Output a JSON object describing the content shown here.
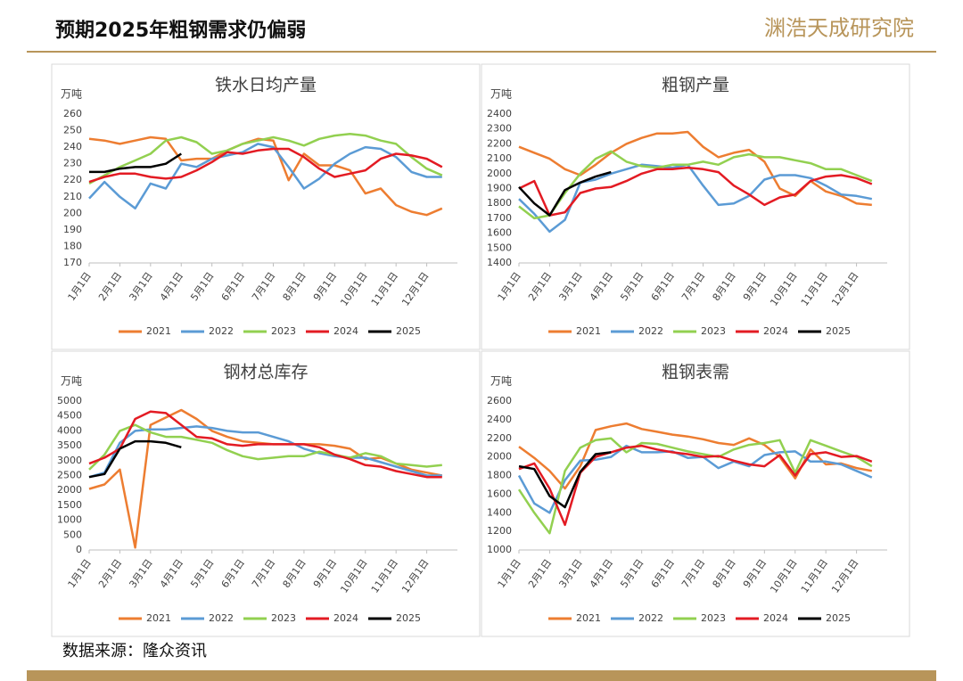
{
  "header": {
    "title": "预期2025年粗钢需求仍偏弱",
    "logo": "渊浩天成研究院"
  },
  "footer": {
    "source": "数据来源：隆众资讯"
  },
  "chart_data": [
    {
      "type": "line",
      "title": "铁水日均产量",
      "y_label": "万吨",
      "categories": [
        "1月1日",
        null,
        "2月1日",
        null,
        "3月1日",
        null,
        "4月1日",
        null,
        "5月1日",
        null,
        "6月1日",
        null,
        "7月1日",
        null,
        "8月1日",
        null,
        "9月1日",
        null,
        "10月1日",
        null,
        "11月1日",
        null,
        "12月1日",
        null
      ],
      "ylim": [
        170,
        260
      ],
      "yticks": [
        170,
        180,
        190,
        200,
        210,
        220,
        230,
        240,
        250,
        260
      ],
      "grid": false,
      "series": [
        {
          "name": "2021",
          "color": "#ed7d31",
          "values": [
            245,
            244,
            242,
            244,
            246,
            245,
            232,
            233,
            233,
            238,
            242,
            245,
            244,
            220,
            236,
            229,
            229,
            226,
            212,
            215,
            205,
            201,
            199,
            203
          ]
        },
        {
          "name": "2022",
          "color": "#5b9bd5",
          "values": [
            209,
            219,
            210,
            203,
            218,
            215,
            230,
            228,
            233,
            235,
            237,
            242,
            240,
            228,
            215,
            221,
            230,
            236,
            240,
            239,
            234,
            225,
            222,
            222
          ]
        },
        {
          "name": "2023",
          "color": "#92d050",
          "values": [
            218,
            223,
            228,
            232,
            236,
            244,
            246,
            243,
            236,
            238,
            242,
            244,
            246,
            244,
            241,
            245,
            247,
            248,
            247,
            244,
            242,
            234,
            227,
            223
          ]
        },
        {
          "name": "2024",
          "color": "#e31b23",
          "values": [
            219,
            222,
            224,
            224,
            222,
            221,
            222,
            226,
            231,
            237,
            236,
            238,
            239,
            239,
            234,
            227,
            222,
            224,
            226,
            233,
            236,
            235,
            233,
            228
          ]
        },
        {
          "name": "2025",
          "color": "#000000",
          "values": [
            225,
            225,
            227,
            228,
            228,
            230,
            236,
            null,
            null,
            null,
            null,
            null,
            null,
            null,
            null,
            null,
            null,
            null,
            null,
            null,
            null,
            null,
            null,
            null
          ]
        }
      ]
    },
    {
      "type": "line",
      "title": "粗钢产量",
      "y_label": "万吨",
      "categories": [
        "1月1日",
        null,
        "2月1日",
        null,
        "3月1日",
        null,
        "4月1日",
        null,
        "5月1日",
        null,
        "6月1日",
        null,
        "7月1日",
        null,
        "8月1日",
        null,
        "9月1日",
        null,
        "10月1日",
        null,
        "11月1日",
        null,
        "12月1日",
        null
      ],
      "ylim": [
        1400,
        2400
      ],
      "yticks": [
        1400,
        1500,
        1600,
        1700,
        1800,
        1900,
        2000,
        2100,
        2200,
        2300,
        2400
      ],
      "grid": false,
      "series": [
        {
          "name": "2021",
          "color": "#ed7d31",
          "values": [
            2180,
            2140,
            2100,
            2030,
            1990,
            2060,
            2140,
            2200,
            2240,
            2270,
            2270,
            2280,
            2180,
            2110,
            2140,
            2160,
            2080,
            1900,
            1850,
            1950,
            1880,
            1850,
            1800,
            1790
          ]
        },
        {
          "name": "2022",
          "color": "#5b9bd5",
          "values": [
            1830,
            1730,
            1610,
            1690,
            1940,
            1960,
            2000,
            2030,
            2060,
            2050,
            2040,
            2060,
            1920,
            1790,
            1800,
            1850,
            1960,
            1990,
            1990,
            1970,
            1920,
            1860,
            1850,
            1830
          ]
        },
        {
          "name": "2023",
          "color": "#92d050",
          "values": [
            1780,
            1700,
            1720,
            1870,
            2000,
            2100,
            2150,
            2080,
            2050,
            2040,
            2060,
            2060,
            2080,
            2060,
            2110,
            2130,
            2110,
            2110,
            2090,
            2070,
            2030,
            2030,
            1990,
            1950
          ]
        },
        {
          "name": "2024",
          "color": "#e31b23",
          "values": [
            1900,
            1950,
            1720,
            1740,
            1870,
            1900,
            1910,
            1950,
            2000,
            2030,
            2030,
            2040,
            2030,
            2010,
            1920,
            1860,
            1790,
            1840,
            1860,
            1950,
            1980,
            1990,
            1970,
            1930
          ]
        },
        {
          "name": "2025",
          "color": "#000000",
          "values": [
            1910,
            1800,
            1720,
            1890,
            1940,
            1980,
            2010,
            null,
            null,
            null,
            null,
            null,
            null,
            null,
            null,
            null,
            null,
            null,
            null,
            null,
            null,
            null,
            null,
            null
          ]
        }
      ]
    },
    {
      "type": "line",
      "title": "钢材总库存",
      "y_label": "万吨",
      "categories": [
        "1月1日",
        null,
        "2月1日",
        null,
        "3月1日",
        null,
        "4月1日",
        null,
        "5月1日",
        null,
        "6月1日",
        null,
        "7月1日",
        null,
        "8月1日",
        null,
        "9月1日",
        null,
        "10月1日",
        null,
        "11月1日",
        null,
        "12月1日",
        null
      ],
      "ylim": [
        0,
        5000
      ],
      "yticks": [
        0,
        500,
        1000,
        1500,
        2000,
        2500,
        3000,
        3500,
        4000,
        4500,
        5000
      ],
      "grid": false,
      "series": [
        {
          "name": "2021",
          "color": "#ed7d31",
          "values": [
            2050,
            2200,
            2700,
            80,
            4200,
            4450,
            4700,
            4400,
            4000,
            3800,
            3650,
            3600,
            3550,
            3550,
            3550,
            3550,
            3500,
            3400,
            3050,
            3100,
            2900,
            2700,
            2600,
            2500
          ]
        },
        {
          "name": "2022",
          "color": "#5b9bd5",
          "values": [
            2450,
            2600,
            3600,
            4000,
            4050,
            4050,
            4100,
            4150,
            4100,
            4000,
            3950,
            3950,
            3800,
            3650,
            3400,
            3250,
            3150,
            3100,
            3100,
            2950,
            2800,
            2650,
            2500,
            2500
          ]
        },
        {
          "name": "2023",
          "color": "#92d050",
          "values": [
            2700,
            3200,
            4000,
            4200,
            3950,
            3800,
            3800,
            3700,
            3600,
            3350,
            3150,
            3050,
            3100,
            3150,
            3150,
            3300,
            3200,
            3100,
            3250,
            3150,
            2900,
            2850,
            2800,
            2850
          ]
        },
        {
          "name": "2024",
          "color": "#e31b23",
          "values": [
            2900,
            3100,
            3400,
            4400,
            4650,
            4600,
            4200,
            3800,
            3750,
            3550,
            3500,
            3550,
            3550,
            3550,
            3550,
            3450,
            3200,
            3050,
            2850,
            2800,
            2650,
            2550,
            2450,
            2450
          ]
        },
        {
          "name": "2025",
          "color": "#000000",
          "values": [
            2450,
            2550,
            3400,
            3650,
            3650,
            3600,
            3450,
            null,
            null,
            null,
            null,
            null,
            null,
            null,
            null,
            null,
            null,
            null,
            null,
            null,
            null,
            null,
            null,
            null
          ]
        }
      ]
    },
    {
      "type": "line",
      "title": "粗钢表需",
      "y_label": "万吨",
      "categories": [
        "1月1日",
        null,
        "2月1日",
        null,
        "3月1日",
        null,
        "4月1日",
        null,
        "5月1日",
        null,
        "6月1日",
        null,
        "7月1日",
        null,
        "8月1日",
        null,
        "9月1日",
        null,
        "10月1日",
        null,
        "11月1日",
        null,
        "12月1日",
        null
      ],
      "ylim": [
        1000,
        2600
      ],
      "yticks": [
        1000,
        1200,
        1400,
        1600,
        1800,
        2000,
        2200,
        2400,
        2600
      ],
      "grid": false,
      "series": [
        {
          "name": "2021",
          "color": "#ed7d31",
          "values": [
            2110,
            1990,
            1850,
            1660,
            1900,
            2290,
            2330,
            2360,
            2300,
            2270,
            2240,
            2220,
            2190,
            2150,
            2130,
            2200,
            2130,
            2000,
            1770,
            2080,
            1920,
            1930,
            1880,
            1850
          ]
        },
        {
          "name": "2022",
          "color": "#5b9bd5",
          "values": [
            1800,
            1500,
            1400,
            1750,
            1960,
            1970,
            2000,
            2120,
            2050,
            2050,
            2060,
            1990,
            2000,
            1880,
            1950,
            1900,
            2020,
            2050,
            2060,
            1950,
            1950,
            1920,
            1850,
            1780
          ]
        },
        {
          "name": "2023",
          "color": "#92d050",
          "values": [
            1650,
            1400,
            1180,
            1850,
            2100,
            2180,
            2200,
            2050,
            2150,
            2140,
            2100,
            2060,
            2030,
            2000,
            2080,
            2130,
            2150,
            2180,
            1830,
            2180,
            2120,
            2060,
            2000,
            1900
          ]
        },
        {
          "name": "2024",
          "color": "#e31b23",
          "values": [
            1870,
            1930,
            1660,
            1270,
            1830,
            2000,
            2050,
            2100,
            2120,
            2080,
            2050,
            2030,
            2000,
            2010,
            1960,
            1920,
            1900,
            2020,
            1800,
            2030,
            2050,
            2000,
            2010,
            1950
          ]
        },
        {
          "name": "2025",
          "color": "#000000",
          "values": [
            1900,
            1870,
            1580,
            1460,
            1840,
            2030,
            2050,
            null,
            null,
            null,
            null,
            null,
            null,
            null,
            null,
            null,
            null,
            null,
            null,
            null,
            null,
            null,
            null,
            null
          ]
        }
      ]
    }
  ]
}
